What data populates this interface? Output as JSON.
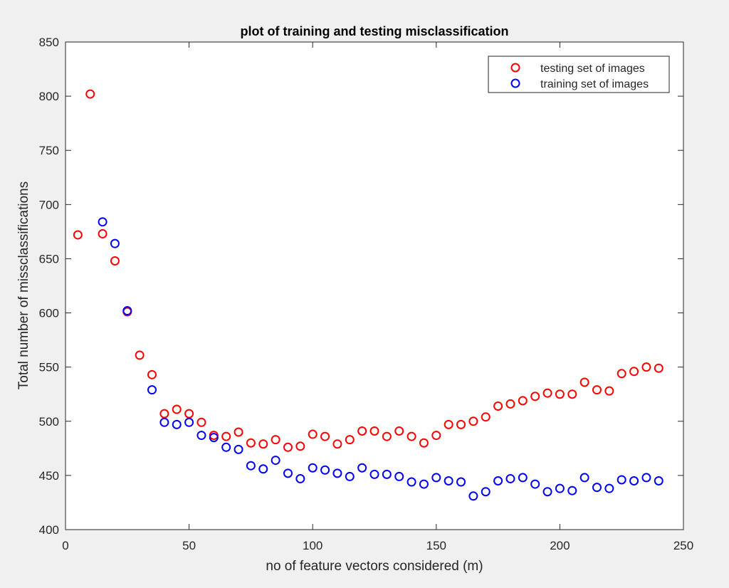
{
  "chart_data": {
    "type": "scatter",
    "title": "plot of training and testing misclassification",
    "xlabel": "no of feature vectors considered (m)",
    "ylabel": "Total number of missclassifications",
    "xlim": [
      0,
      250
    ],
    "ylim": [
      400,
      850
    ],
    "xticks": [
      0,
      50,
      100,
      150,
      200,
      250
    ],
    "yticks": [
      400,
      450,
      500,
      550,
      600,
      650,
      700,
      750,
      800,
      850
    ],
    "grid": false,
    "legend_position": "top-right",
    "marker": "circle-open",
    "series": [
      {
        "name": "testing set of images",
        "color": "#ff0000",
        "x": [
          5,
          10,
          15,
          20,
          25,
          30,
          35,
          40,
          45,
          50,
          55,
          60,
          65,
          70,
          75,
          80,
          85,
          90,
          95,
          100,
          105,
          110,
          115,
          120,
          125,
          130,
          135,
          140,
          145,
          150,
          155,
          160,
          165,
          170,
          175,
          180,
          185,
          190,
          195,
          200,
          205,
          210,
          215,
          220,
          225,
          230,
          235,
          240
        ],
        "y": [
          672,
          802,
          673,
          648,
          601,
          561,
          543,
          507,
          511,
          507,
          499,
          487,
          486,
          490,
          480,
          479,
          483,
          476,
          477,
          488,
          486,
          479,
          483,
          491,
          491,
          486,
          491,
          486,
          480,
          487,
          497,
          497,
          500,
          504,
          514,
          516,
          519,
          523,
          526,
          525,
          525,
          536,
          529,
          528,
          544,
          546,
          550,
          549
        ]
      },
      {
        "name": "training set of images",
        "color": "#0000ff",
        "x": [
          15,
          20,
          25,
          35,
          40,
          45,
          50,
          55,
          60,
          65,
          70,
          75,
          80,
          85,
          90,
          95,
          100,
          105,
          110,
          115,
          120,
          125,
          130,
          135,
          140,
          145,
          150,
          155,
          160,
          165,
          170,
          175,
          180,
          185,
          190,
          195,
          200,
          205,
          210,
          215,
          220,
          225,
          230,
          235,
          240
        ],
        "y": [
          684,
          664,
          602,
          529,
          499,
          497,
          499,
          487,
          485,
          476,
          474,
          459,
          456,
          464,
          452,
          447,
          457,
          455,
          452,
          449,
          457,
          451,
          451,
          449,
          444,
          442,
          448,
          445,
          444,
          431,
          435,
          445,
          447,
          448,
          442,
          435,
          438,
          436,
          448,
          439,
          438,
          446,
          445,
          448,
          445
        ]
      }
    ]
  }
}
